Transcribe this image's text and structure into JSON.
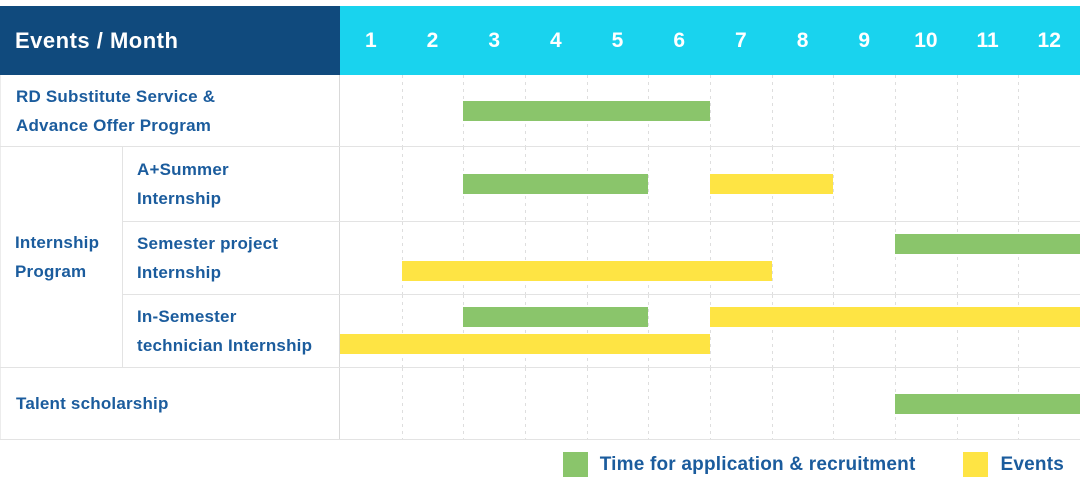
{
  "header": {
    "title": "Events / Month",
    "months": [
      "1",
      "2",
      "3",
      "4",
      "5",
      "6",
      "7",
      "8",
      "9",
      "10",
      "11",
      "12"
    ]
  },
  "group_label": "Internship\nProgram",
  "rows": [
    {
      "label": "RD Substitute Service &\nAdvance Offer Program",
      "group": "",
      "bars": [
        {
          "type": "green",
          "lane": "single",
          "start": 3,
          "end": 6
        }
      ]
    },
    {
      "label": "A+Summer\nInternship",
      "group": "Internship Program",
      "bars": [
        {
          "type": "green",
          "lane": "single",
          "start": 3,
          "end": 5
        },
        {
          "type": "yellow",
          "lane": "single",
          "start": 7,
          "end": 8
        }
      ]
    },
    {
      "label": "Semester project\nInternship",
      "group": "Internship Program",
      "bars": [
        {
          "type": "green",
          "lane": "top",
          "start": 10,
          "end": 12
        },
        {
          "type": "yellow",
          "lane": "bottom",
          "start": 2,
          "end": 7
        }
      ]
    },
    {
      "label": "In-Semester\ntechnician Internship",
      "group": "Internship Program",
      "bars": [
        {
          "type": "green",
          "lane": "top",
          "start": 3,
          "end": 5
        },
        {
          "type": "yellow",
          "lane": "top",
          "start": 7,
          "end": 12
        },
        {
          "type": "yellow",
          "lane": "bottom",
          "start": 1,
          "end": 6
        }
      ]
    },
    {
      "label": "Talent scholarship",
      "group": "",
      "bars": [
        {
          "type": "green",
          "lane": "single",
          "start": 10,
          "end": 12
        }
      ]
    }
  ],
  "legend": {
    "items": [
      {
        "color": "green",
        "label": "Time for application & recruitment"
      },
      {
        "color": "yellow",
        "label": "Events"
      }
    ]
  },
  "colors": {
    "header_bg": "#104a7d",
    "months_bg": "#19d3ee",
    "bar_green": "#8ac56b",
    "bar_yellow": "#fee444",
    "label_text": "#1b5c9d",
    "grid_line": "#e3e3e3"
  },
  "chart_data": {
    "type": "bar",
    "subtype": "gantt-timeline",
    "title": "Events / Month",
    "xlabel": "Month",
    "x_ticks": [
      1,
      2,
      3,
      4,
      5,
      6,
      7,
      8,
      9,
      10,
      11,
      12
    ],
    "x_range": [
      1,
      12
    ],
    "grid": true,
    "legend": [
      "Time for application & recruitment",
      "Events"
    ],
    "legend_position": "bottom-right",
    "rows": [
      {
        "event": "RD Substitute Service & Advance Offer Program",
        "group": null,
        "spans": [
          {
            "series": "Time for application & recruitment",
            "start_month": 3,
            "end_month": 6
          }
        ]
      },
      {
        "event": "A+Summer Internship",
        "group": "Internship Program",
        "spans": [
          {
            "series": "Time for application & recruitment",
            "start_month": 3,
            "end_month": 5
          },
          {
            "series": "Events",
            "start_month": 7,
            "end_month": 8
          }
        ]
      },
      {
        "event": "Semester project Internship",
        "group": "Internship Program",
        "spans": [
          {
            "series": "Time for application & recruitment",
            "start_month": 10,
            "end_month": 12
          },
          {
            "series": "Events",
            "start_month": 2,
            "end_month": 7
          }
        ]
      },
      {
        "event": "In-Semester technician Internship",
        "group": "Internship Program",
        "spans": [
          {
            "series": "Time for application & recruitment",
            "start_month": 3,
            "end_month": 5
          },
          {
            "series": "Events",
            "start_month": 7,
            "end_month": 12
          },
          {
            "series": "Events",
            "start_month": 1,
            "end_month": 6
          }
        ]
      },
      {
        "event": "Talent scholarship",
        "group": null,
        "spans": [
          {
            "series": "Time for application & recruitment",
            "start_month": 10,
            "end_month": 12
          }
        ]
      }
    ]
  }
}
